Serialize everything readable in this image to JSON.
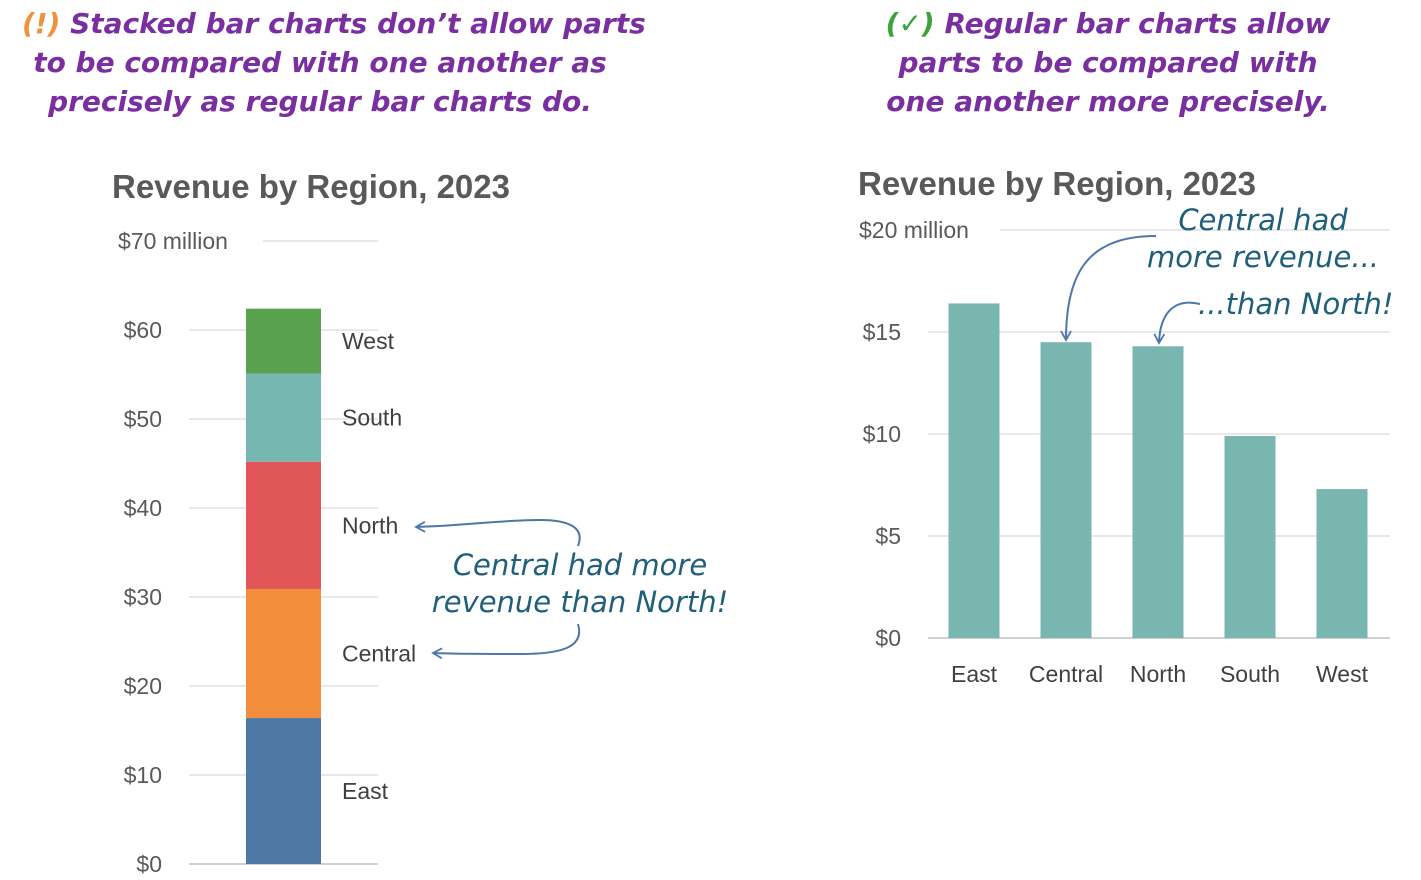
{
  "left_note": {
    "mark": "(!)",
    "lines": [
      "Stacked bar charts don’t allow parts",
      "to be compared with one another as",
      "precisely as regular bar charts do."
    ]
  },
  "right_note": {
    "mark": "(✓)",
    "lines": [
      "Regular bar charts allow",
      "parts to be compared with",
      "one another more precisely."
    ]
  },
  "left_annotation": [
    "Central had more",
    "revenue than North!"
  ],
  "right_annotation": {
    "central": [
      "Central had",
      "more revenue..."
    ],
    "north": "...than North!"
  },
  "colors": {
    "East": "#4e79a7",
    "Central": "#f28e3b",
    "North": "#e15759",
    "South": "#76b7b2",
    "West": "#59a14f",
    "regular_bar": "#79b6af"
  },
  "chart_data": [
    {
      "type": "bar",
      "stacked": true,
      "title": "Revenue by Region, 2023",
      "unit_label": "million",
      "ylim": [
        0,
        70
      ],
      "yticks": [
        0,
        10,
        20,
        30,
        40,
        50,
        60,
        70
      ],
      "ytick_labels": [
        "$0",
        "$10",
        "$20",
        "$30",
        "$40",
        "$50",
        "$60",
        "$70"
      ],
      "series": [
        {
          "name": "East",
          "value": 16.4
        },
        {
          "name": "Central",
          "value": 14.5
        },
        {
          "name": "North",
          "value": 14.3
        },
        {
          "name": "South",
          "value": 9.9
        },
        {
          "name": "West",
          "value": 7.3
        }
      ]
    },
    {
      "type": "bar",
      "stacked": false,
      "title": "Revenue by Region, 2023",
      "unit_label": "million",
      "ylim": [
        0,
        20
      ],
      "yticks": [
        0,
        5,
        10,
        15,
        20
      ],
      "ytick_labels": [
        "$0",
        "$5",
        "$10",
        "$15",
        "$20"
      ],
      "categories": [
        "East",
        "Central",
        "North",
        "South",
        "West"
      ],
      "values": [
        16.4,
        14.5,
        14.3,
        9.9,
        7.3
      ]
    }
  ]
}
